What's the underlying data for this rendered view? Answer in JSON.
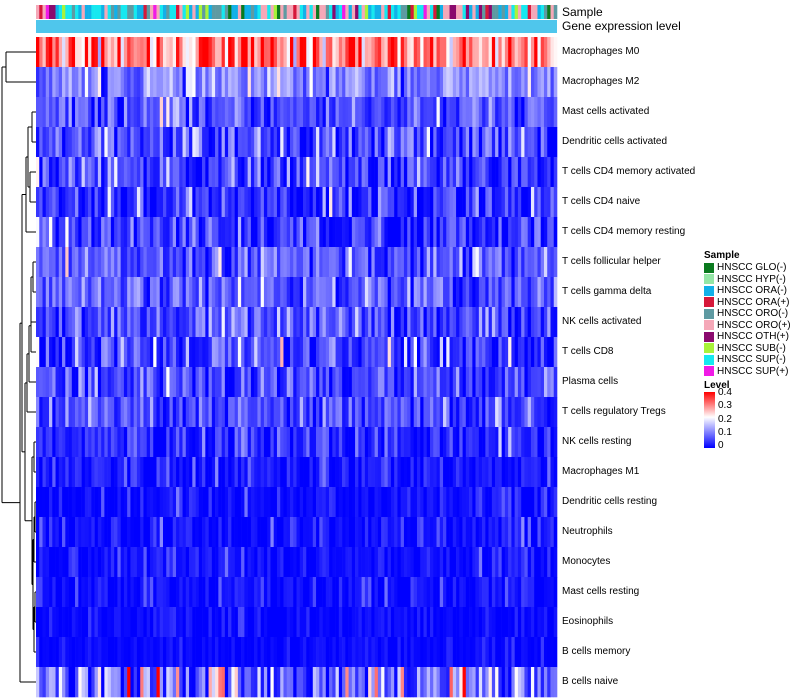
{
  "chart_data": {
    "type": "heatmap",
    "annotation_tracks": [
      "Sample",
      "Gene expression level"
    ],
    "rows": [
      {
        "name": "Macrophages M0",
        "mean": 0.3,
        "sd": 0.07
      },
      {
        "name": "Macrophages M2",
        "mean": 0.11,
        "sd": 0.04
      },
      {
        "name": "Mast cells activated",
        "mean": 0.06,
        "sd": 0.04
      },
      {
        "name": "Dendritic cells activated",
        "mean": 0.06,
        "sd": 0.05
      },
      {
        "name": "T cells CD4 memory activated",
        "mean": 0.05,
        "sd": 0.05
      },
      {
        "name": "T cells CD4 naive",
        "mean": 0.04,
        "sd": 0.05
      },
      {
        "name": "T cells CD4 memory resting",
        "mean": 0.03,
        "sd": 0.05
      },
      {
        "name": "T cells follicular helper",
        "mean": 0.07,
        "sd": 0.04
      },
      {
        "name": "T cells gamma delta",
        "mean": 0.07,
        "sd": 0.04
      },
      {
        "name": "NK cells activated",
        "mean": 0.06,
        "sd": 0.04
      },
      {
        "name": "T cells CD8",
        "mean": 0.04,
        "sd": 0.05
      },
      {
        "name": "Plasma cells",
        "mean": 0.05,
        "sd": 0.05
      },
      {
        "name": "T cells regulatory  Tregs",
        "mean": 0.05,
        "sd": 0.04
      },
      {
        "name": "NK cells resting",
        "mean": 0.03,
        "sd": 0.04
      },
      {
        "name": "Macrophages M1",
        "mean": 0.02,
        "sd": 0.03
      },
      {
        "name": "Dendritic cells resting",
        "mean": 0.01,
        "sd": 0.025
      },
      {
        "name": "Neutrophils",
        "mean": 0.01,
        "sd": 0.025
      },
      {
        "name": "Monocytes",
        "mean": 0.01,
        "sd": 0.02
      },
      {
        "name": "Mast cells resting",
        "mean": 0.01,
        "sd": 0.02
      },
      {
        "name": "Eosinophils",
        "mean": 0.005,
        "sd": 0.015
      },
      {
        "name": "B cells memory",
        "mean": 0.005,
        "sd": 0.012
      },
      {
        "name": "B cells naive",
        "mean": 0.09,
        "sd": 0.09
      }
    ],
    "n_samples": 160,
    "color_scale": {
      "min": 0,
      "max": 0.4,
      "low": "#0000ff",
      "mid": "#ffffff",
      "high": "#ff0000",
      "mid_value": 0.22
    },
    "level_ticks": [
      "0.4",
      "0.3",
      "0.2",
      "0.1",
      "0"
    ],
    "sample_groups": [
      {
        "label": "HNSCC GLO(-)",
        "color": "#0a7a1e"
      },
      {
        "label": "HNSCC HYP(-)",
        "color": "#94e6a6"
      },
      {
        "label": "HNSCC ORA(-)",
        "color": "#12b0e8"
      },
      {
        "label": "HNSCC ORA(+)",
        "color": "#d6183a"
      },
      {
        "label": "HNSCC ORO(-)",
        "color": "#5e9aa2"
      },
      {
        "label": "HNSCC ORO(+)",
        "color": "#f5a8b8"
      },
      {
        "label": "HNSCC OTH(+)",
        "color": "#8a0a6e"
      },
      {
        "label": "HNSCC SUB(-)",
        "color": "#a8f23a"
      },
      {
        "label": "HNSCC SUP(-)",
        "color": "#16e8f0"
      },
      {
        "label": "HNSCC SUP(+)",
        "color": "#f01ae6"
      }
    ],
    "expression_track_color": "#4fc6ec",
    "legend_titles": {
      "sample": "Sample",
      "level": "Level"
    }
  }
}
